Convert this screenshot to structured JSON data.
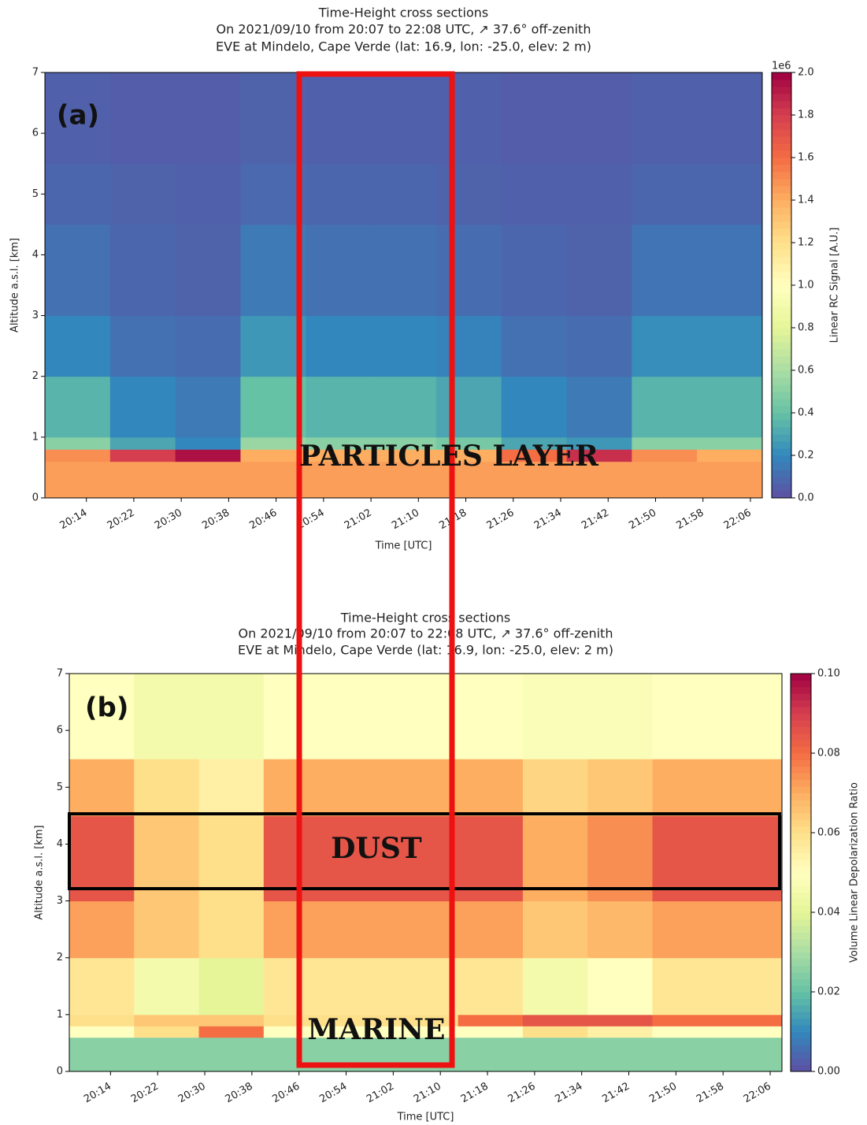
{
  "chart_data": [
    {
      "type": "heatmap",
      "title": [
        "Time-Height cross sections",
        "On 2021/09/10 from 20:07 to 22:08 UTC, ↗ 37.6° off-zenith",
        "EVE at Mindelo, Cape Verde (lat: 16.9, lon: -25.0, elev: 2 m)"
      ],
      "panel_label": "(a)",
      "annotation": "PARTICLES LAYER",
      "xlabel": "Time [UTC]",
      "ylabel": "Altitude a.s.l. [km]",
      "colorbar_label": "Linear RC Signal [A.U.]",
      "colorbar_offset": "1e6",
      "xlim": [
        1207,
        1328
      ],
      "xticks": [
        {
          "value": 1214,
          "label": "20:14"
        },
        {
          "value": 1222,
          "label": "20:22"
        },
        {
          "value": 1230,
          "label": "20:30"
        },
        {
          "value": 1238,
          "label": "20:38"
        },
        {
          "value": 1246,
          "label": "20:46"
        },
        {
          "value": 1254,
          "label": "20:54"
        },
        {
          "value": 1262,
          "label": "21:02"
        },
        {
          "value": 1270,
          "label": "21:10"
        },
        {
          "value": 1278,
          "label": "21:18"
        },
        {
          "value": 1286,
          "label": "21:26"
        },
        {
          "value": 1294,
          "label": "21:34"
        },
        {
          "value": 1302,
          "label": "21:42"
        },
        {
          "value": 1310,
          "label": "21:50"
        },
        {
          "value": 1318,
          "label": "21:58"
        },
        {
          "value": 1326,
          "label": "22:06"
        }
      ],
      "ylim": [
        0,
        7
      ],
      "yticks": [
        0,
        1,
        2,
        3,
        4,
        5,
        6,
        7
      ],
      "clim": [
        0,
        2.0
      ],
      "cticks": [
        {
          "value": 0,
          "label": "0.0"
        },
        {
          "value": 0.2,
          "label": "0.2"
        },
        {
          "value": 0.4,
          "label": "0.4"
        },
        {
          "value": 0.6,
          "label": "0.6"
        },
        {
          "value": 0.8,
          "label": "0.8"
        },
        {
          "value": 1.0,
          "label": "1.0"
        },
        {
          "value": 1.2,
          "label": "1.2"
        },
        {
          "value": 1.4,
          "label": "1.4"
        },
        {
          "value": 1.6,
          "label": "1.6"
        },
        {
          "value": 1.8,
          "label": "1.8"
        },
        {
          "value": 2.0,
          "label": "2.0"
        }
      ],
      "colorscale": [
        "#5e4fa2",
        "#3288bd",
        "#66c2a5",
        "#abdda4",
        "#e6f598",
        "#ffffbf",
        "#fee08b",
        "#fdae61",
        "#f46d43",
        "#d53e4f",
        "#9e0142"
      ],
      "xbins": [
        1207,
        1218,
        1229,
        1240,
        1251,
        1262,
        1273,
        1284,
        1295,
        1306,
        1317,
        1328
      ],
      "ybins": [
        0,
        0.6,
        0.8,
        1,
        2,
        3,
        4.5,
        5.5,
        7
      ],
      "values": [
        [
          1.45,
          1.45,
          1.45,
          1.45,
          1.45,
          1.45,
          1.45,
          1.45,
          1.45,
          1.45,
          1.45
        ],
        [
          1.5,
          1.8,
          1.95,
          1.4,
          1.4,
          1.4,
          1.4,
          1.6,
          1.85,
          1.5,
          1.4
        ],
        [
          0.5,
          0.3,
          0.2,
          0.55,
          0.5,
          0.5,
          0.45,
          0.3,
          0.25,
          0.5,
          0.5
        ],
        [
          0.35,
          0.2,
          0.15,
          0.4,
          0.35,
          0.35,
          0.3,
          0.2,
          0.15,
          0.35,
          0.35
        ],
        [
          0.2,
          0.12,
          0.1,
          0.25,
          0.2,
          0.2,
          0.18,
          0.12,
          0.1,
          0.22,
          0.22
        ],
        [
          0.12,
          0.08,
          0.07,
          0.15,
          0.12,
          0.12,
          0.1,
          0.08,
          0.07,
          0.13,
          0.13
        ],
        [
          0.08,
          0.07,
          0.06,
          0.09,
          0.08,
          0.08,
          0.07,
          0.06,
          0.06,
          0.08,
          0.08
        ],
        [
          0.06,
          0.05,
          0.05,
          0.07,
          0.06,
          0.06,
          0.06,
          0.05,
          0.05,
          0.06,
          0.06
        ]
      ]
    },
    {
      "type": "heatmap",
      "title": [
        "Time-Height cross sections",
        "On 2021/09/10 from 20:07 to 22:08 UTC, ↗ 37.6° off-zenith",
        "EVE at Mindelo, Cape Verde (lat: 16.9, lon: -25.0, elev: 2 m)"
      ],
      "panel_label": "(b)",
      "annotations": [
        "DUST",
        "MARINE"
      ],
      "xlabel": "Time [UTC]",
      "ylabel": "Altitude a.s.l. [km]",
      "colorbar_label": "Volume Linear Depolarization Ratio",
      "xlim": [
        1207,
        1328
      ],
      "xticks": [
        {
          "value": 1214,
          "label": "20:14"
        },
        {
          "value": 1222,
          "label": "20:22"
        },
        {
          "value": 1230,
          "label": "20:30"
        },
        {
          "value": 1238,
          "label": "20:38"
        },
        {
          "value": 1246,
          "label": "20:46"
        },
        {
          "value": 1254,
          "label": "20:54"
        },
        {
          "value": 1262,
          "label": "21:02"
        },
        {
          "value": 1270,
          "label": "21:10"
        },
        {
          "value": 1278,
          "label": "21:18"
        },
        {
          "value": 1286,
          "label": "21:26"
        },
        {
          "value": 1294,
          "label": "21:34"
        },
        {
          "value": 1302,
          "label": "21:42"
        },
        {
          "value": 1310,
          "label": "21:50"
        },
        {
          "value": 1318,
          "label": "21:58"
        },
        {
          "value": 1326,
          "label": "22:06"
        }
      ],
      "ylim": [
        0,
        7
      ],
      "yticks": [
        0,
        1,
        2,
        3,
        4,
        5,
        6,
        7
      ],
      "clim": [
        0,
        0.1
      ],
      "cticks": [
        {
          "value": 0,
          "label": "0.00"
        },
        {
          "value": 0.02,
          "label": "0.02"
        },
        {
          "value": 0.04,
          "label": "0.04"
        },
        {
          "value": 0.06,
          "label": "0.06"
        },
        {
          "value": 0.08,
          "label": "0.08"
        },
        {
          "value": 0.1,
          "label": "0.10"
        }
      ],
      "colorscale": [
        "#5e4fa2",
        "#3288bd",
        "#66c2a5",
        "#abdda4",
        "#e6f598",
        "#ffffbf",
        "#fee08b",
        "#fdae61",
        "#f46d43",
        "#d53e4f",
        "#9e0142"
      ],
      "xbins": [
        1207,
        1218,
        1229,
        1240,
        1251,
        1262,
        1273,
        1284,
        1295,
        1306,
        1317,
        1328
      ],
      "ybins": [
        0,
        0.6,
        0.8,
        1,
        2,
        3,
        4.5,
        5.5,
        7
      ],
      "values": [
        [
          0.025,
          0.025,
          0.025,
          0.025,
          0.025,
          0.025,
          0.025,
          0.025,
          0.025,
          0.025,
          0.025
        ],
        [
          0.05,
          0.06,
          0.08,
          0.05,
          0.05,
          0.05,
          0.05,
          0.06,
          0.055,
          0.05,
          0.05
        ],
        [
          0.06,
          0.065,
          0.065,
          0.06,
          0.06,
          0.06,
          0.08,
          0.085,
          0.085,
          0.08,
          0.08
        ],
        [
          0.058,
          0.045,
          0.04,
          0.058,
          0.058,
          0.058,
          0.058,
          0.045,
          0.05,
          0.058,
          0.058
        ],
        [
          0.072,
          0.065,
          0.06,
          0.072,
          0.072,
          0.072,
          0.072,
          0.065,
          0.068,
          0.072,
          0.072
        ],
        [
          0.085,
          0.065,
          0.06,
          0.085,
          0.085,
          0.085,
          0.085,
          0.07,
          0.075,
          0.085,
          0.085
        ],
        [
          0.07,
          0.06,
          0.055,
          0.07,
          0.07,
          0.07,
          0.07,
          0.062,
          0.065,
          0.07,
          0.07
        ],
        [
          0.05,
          0.045,
          0.045,
          0.05,
          0.05,
          0.05,
          0.05,
          0.048,
          0.048,
          0.05,
          0.05
        ]
      ]
    }
  ]
}
